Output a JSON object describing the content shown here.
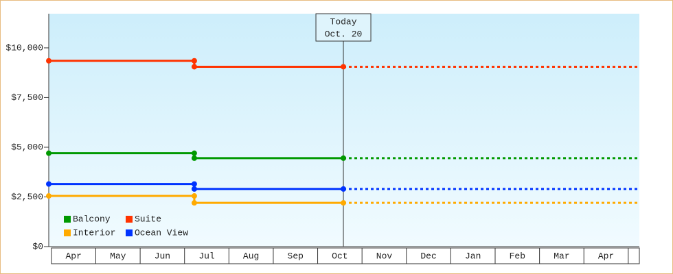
{
  "chart_data": {
    "type": "line",
    "xticks": [
      {
        "value": 0.5,
        "label": "Apr"
      },
      {
        "value": 1.5,
        "label": "May"
      },
      {
        "value": 2.5,
        "label": "Jun"
      },
      {
        "value": 3.5,
        "label": "Jul"
      },
      {
        "value": 4.5,
        "label": "Aug"
      },
      {
        "value": 5.5,
        "label": "Sep"
      },
      {
        "value": 6.5,
        "label": "Oct"
      },
      {
        "value": 7.5,
        "label": "Nov"
      },
      {
        "value": 8.5,
        "label": "Dec"
      },
      {
        "value": 9.5,
        "label": "Jan"
      },
      {
        "value": 10.5,
        "label": "Feb"
      },
      {
        "value": 11.5,
        "label": "Mar"
      },
      {
        "value": 12.5,
        "label": "Apr"
      }
    ],
    "xlim": [
      -0.06,
      13.25
    ],
    "ylim": [
      0,
      11720
    ],
    "yticks": [
      {
        "value": 0,
        "label": "$0"
      },
      {
        "value": 2500,
        "label": "$2,500"
      },
      {
        "value": 5000,
        "label": "$5,000"
      },
      {
        "value": 7500,
        "label": "$7,500"
      },
      {
        "value": 10000,
        "label": "$10,000"
      }
    ],
    "annotation": {
      "x": 6.58,
      "lines": [
        "Today",
        "Oct. 20"
      ]
    },
    "series": [
      {
        "name": "Balcony",
        "color": "#009900",
        "x": [
          -0.06,
          3.22,
          3.22,
          6.58,
          13.25
        ],
        "values": [
          4700,
          4700,
          4450,
          4450,
          4450
        ]
      },
      {
        "name": "Suite",
        "color": "#ff3300",
        "x": [
          -0.06,
          3.22,
          3.22,
          6.58,
          13.25
        ],
        "values": [
          9350,
          9350,
          9050,
          9050,
          9050
        ]
      },
      {
        "name": "Interior",
        "color": "#ffaa00",
        "x": [
          -0.06,
          3.22,
          3.22,
          6.58,
          13.25
        ],
        "values": [
          2550,
          2550,
          2200,
          2200,
          2200
        ]
      },
      {
        "name": "Ocean View",
        "color": "#0033ff",
        "x": [
          -0.06,
          3.22,
          3.22,
          6.58,
          13.25
        ],
        "values": [
          3150,
          3150,
          2900,
          2900,
          2900
        ]
      }
    ]
  }
}
